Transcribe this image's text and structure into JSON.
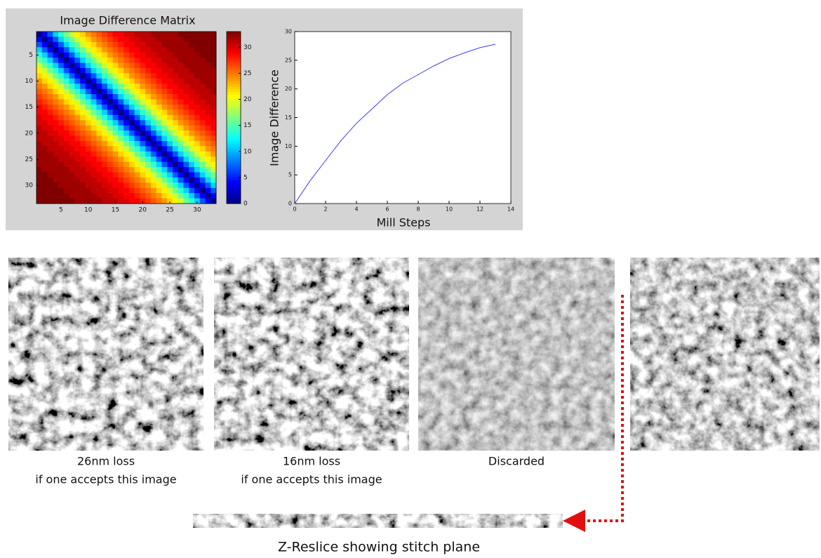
{
  "chart_data": [
    {
      "type": "heatmap",
      "title": "Image Difference Matrix",
      "xlim": [
        0.5,
        33.5
      ],
      "ylim": [
        33.5,
        0.5
      ],
      "xticks": [
        5,
        10,
        15,
        20,
        25,
        30
      ],
      "yticks": [
        5,
        10,
        15,
        20,
        25,
        30
      ],
      "clim": [
        0,
        33
      ],
      "cticks": [
        0,
        5,
        10,
        15,
        20,
        25,
        30
      ],
      "values": [
        [
          0,
          4,
          7,
          11,
          14,
          16,
          19,
          21,
          22,
          24,
          25,
          26,
          27,
          28,
          29,
          29,
          30,
          30,
          31,
          31,
          31,
          32,
          32,
          32,
          32,
          32,
          33,
          33,
          33,
          33,
          33,
          33,
          33
        ],
        [
          4,
          0,
          4,
          7,
          11,
          14,
          16,
          19,
          21,
          22,
          24,
          25,
          26,
          27,
          28,
          29,
          29,
          30,
          30,
          31,
          31,
          31,
          32,
          32,
          32,
          32,
          32,
          33,
          33,
          33,
          33,
          33,
          33
        ],
        [
          7,
          4,
          0,
          4,
          7,
          11,
          14,
          16,
          19,
          21,
          22,
          24,
          25,
          26,
          27,
          28,
          29,
          29,
          30,
          30,
          31,
          31,
          31,
          32,
          32,
          32,
          32,
          32,
          33,
          33,
          33,
          33,
          33
        ],
        [
          11,
          7,
          4,
          0,
          4,
          7,
          11,
          14,
          16,
          19,
          21,
          22,
          24,
          25,
          26,
          27,
          28,
          29,
          29,
          30,
          30,
          31,
          31,
          31,
          32,
          32,
          32,
          32,
          32,
          33,
          33,
          33,
          33
        ],
        [
          14,
          11,
          7,
          4,
          0,
          4,
          7,
          11,
          14,
          16,
          19,
          21,
          22,
          24,
          25,
          26,
          27,
          28,
          29,
          29,
          30,
          30,
          31,
          31,
          31,
          32,
          32,
          32,
          32,
          32,
          33,
          33,
          33
        ],
        [
          16,
          14,
          11,
          7,
          4,
          0,
          4,
          7,
          11,
          14,
          16,
          19,
          21,
          22,
          24,
          25,
          26,
          27,
          28,
          29,
          29,
          30,
          30,
          31,
          31,
          31,
          32,
          32,
          32,
          32,
          32,
          33,
          33
        ],
        [
          19,
          16,
          14,
          11,
          7,
          4,
          0,
          4,
          7,
          11,
          14,
          16,
          19,
          21,
          22,
          24,
          25,
          26,
          27,
          28,
          29,
          29,
          30,
          30,
          31,
          31,
          31,
          32,
          32,
          32,
          32,
          32,
          33
        ],
        [
          21,
          19,
          16,
          14,
          11,
          7,
          4,
          0,
          4,
          7,
          11,
          14,
          16,
          19,
          21,
          22,
          24,
          25,
          26,
          27,
          28,
          29,
          29,
          30,
          30,
          31,
          31,
          31,
          32,
          32,
          32,
          32,
          32
        ],
        [
          22,
          21,
          19,
          16,
          14,
          11,
          7,
          4,
          0,
          4,
          7,
          11,
          14,
          16,
          19,
          21,
          22,
          24,
          25,
          26,
          27,
          28,
          29,
          29,
          30,
          30,
          31,
          31,
          31,
          32,
          32,
          32,
          32
        ],
        [
          24,
          22,
          21,
          19,
          16,
          14,
          11,
          7,
          4,
          0,
          4,
          7,
          11,
          14,
          16,
          19,
          21,
          22,
          24,
          25,
          26,
          27,
          28,
          29,
          29,
          30,
          30,
          31,
          31,
          31,
          32,
          32,
          32
        ],
        [
          25,
          24,
          22,
          21,
          19,
          16,
          14,
          11,
          7,
          4,
          0,
          4,
          7,
          11,
          14,
          16,
          19,
          21,
          22,
          24,
          25,
          26,
          27,
          28,
          29,
          29,
          30,
          30,
          31,
          31,
          31,
          32,
          32
        ],
        [
          26,
          25,
          24,
          22,
          21,
          19,
          16,
          14,
          11,
          7,
          4,
          0,
          4,
          7,
          11,
          14,
          16,
          19,
          21,
          22,
          24,
          25,
          26,
          27,
          28,
          29,
          29,
          30,
          30,
          31,
          31,
          31,
          32
        ],
        [
          27,
          26,
          25,
          24,
          22,
          21,
          19,
          16,
          14,
          11,
          7,
          4,
          0,
          4,
          7,
          11,
          14,
          16,
          19,
          21,
          22,
          24,
          25,
          26,
          27,
          28,
          29,
          29,
          30,
          30,
          31,
          31,
          31
        ],
        [
          28,
          27,
          26,
          25,
          24,
          22,
          21,
          19,
          16,
          14,
          11,
          7,
          4,
          0,
          4,
          7,
          11,
          14,
          16,
          19,
          21,
          22,
          24,
          25,
          26,
          27,
          28,
          29,
          29,
          30,
          30,
          31,
          31
        ],
        [
          29,
          28,
          27,
          26,
          25,
          24,
          22,
          21,
          19,
          16,
          14,
          11,
          7,
          4,
          0,
          4,
          7,
          11,
          14,
          16,
          19,
          21,
          22,
          24,
          25,
          26,
          27,
          28,
          29,
          29,
          30,
          30,
          31
        ],
        [
          29,
          29,
          28,
          27,
          26,
          25,
          24,
          22,
          21,
          19,
          16,
          14,
          11,
          7,
          4,
          0,
          4,
          7,
          11,
          14,
          16,
          19,
          21,
          22,
          24,
          25,
          26,
          27,
          28,
          29,
          29,
          30,
          30
        ],
        [
          30,
          29,
          29,
          28,
          27,
          26,
          25,
          24,
          22,
          21,
          19,
          16,
          14,
          11,
          7,
          4,
          0,
          4,
          7,
          11,
          14,
          16,
          19,
          21,
          22,
          24,
          25,
          26,
          27,
          28,
          29,
          29,
          30
        ],
        [
          30,
          30,
          29,
          29,
          28,
          27,
          26,
          25,
          24,
          22,
          21,
          19,
          16,
          14,
          11,
          7,
          4,
          0,
          4,
          7,
          11,
          14,
          16,
          19,
          21,
          22,
          24,
          25,
          26,
          27,
          28,
          29,
          29
        ],
        [
          31,
          30,
          30,
          29,
          29,
          28,
          27,
          26,
          25,
          24,
          22,
          21,
          19,
          16,
          14,
          11,
          7,
          4,
          0,
          4,
          7,
          11,
          14,
          16,
          19,
          21,
          22,
          24,
          25,
          26,
          27,
          28,
          29
        ],
        [
          31,
          31,
          30,
          30,
          29,
          29,
          28,
          27,
          26,
          25,
          24,
          22,
          21,
          19,
          16,
          14,
          11,
          7,
          4,
          0,
          4,
          7,
          11,
          14,
          16,
          19,
          21,
          22,
          24,
          25,
          26,
          27,
          28
        ],
        [
          31,
          31,
          31,
          30,
          30,
          29,
          29,
          28,
          27,
          26,
          25,
          24,
          22,
          21,
          19,
          16,
          14,
          11,
          7,
          4,
          0,
          4,
          7,
          11,
          14,
          16,
          19,
          21,
          22,
          24,
          25,
          26,
          27
        ],
        [
          32,
          31,
          31,
          31,
          30,
          30,
          29,
          29,
          28,
          27,
          26,
          25,
          24,
          22,
          21,
          19,
          16,
          14,
          11,
          7,
          4,
          0,
          4,
          7,
          11,
          14,
          16,
          19,
          21,
          22,
          24,
          25,
          26
        ],
        [
          32,
          32,
          31,
          31,
          31,
          30,
          30,
          29,
          29,
          28,
          27,
          26,
          25,
          24,
          22,
          21,
          19,
          16,
          14,
          11,
          7,
          4,
          0,
          4,
          7,
          11,
          14,
          16,
          19,
          21,
          22,
          24,
          25
        ],
        [
          32,
          32,
          32,
          31,
          31,
          31,
          30,
          30,
          29,
          29,
          28,
          27,
          26,
          25,
          24,
          22,
          21,
          19,
          16,
          14,
          11,
          7,
          4,
          0,
          4,
          7,
          11,
          14,
          16,
          19,
          21,
          22,
          24
        ],
        [
          32,
          32,
          32,
          32,
          31,
          31,
          31,
          30,
          30,
          29,
          29,
          28,
          27,
          26,
          25,
          24,
          22,
          21,
          19,
          16,
          14,
          11,
          7,
          4,
          0,
          4,
          7,
          11,
          14,
          16,
          19,
          21,
          22
        ],
        [
          32,
          32,
          32,
          32,
          32,
          31,
          31,
          31,
          30,
          30,
          29,
          29,
          28,
          27,
          26,
          25,
          24,
          22,
          21,
          19,
          16,
          14,
          11,
          7,
          4,
          0,
          4,
          7,
          11,
          14,
          16,
          19,
          21
        ],
        [
          33,
          32,
          32,
          32,
          32,
          32,
          31,
          31,
          31,
          30,
          30,
          29,
          29,
          28,
          27,
          26,
          25,
          24,
          22,
          21,
          19,
          16,
          14,
          11,
          7,
          4,
          0,
          4,
          7,
          11,
          14,
          16,
          19
        ],
        [
          33,
          33,
          32,
          32,
          32,
          32,
          32,
          31,
          31,
          31,
          30,
          30,
          29,
          29,
          28,
          27,
          26,
          25,
          24,
          22,
          21,
          19,
          16,
          14,
          11,
          7,
          4,
          0,
          4,
          7,
          11,
          14,
          16
        ],
        [
          33,
          33,
          33,
          32,
          32,
          32,
          32,
          32,
          31,
          31,
          31,
          30,
          30,
          29,
          29,
          28,
          27,
          26,
          25,
          24,
          22,
          21,
          19,
          16,
          14,
          11,
          7,
          4,
          0,
          4,
          7,
          11,
          14
        ],
        [
          33,
          33,
          33,
          33,
          32,
          32,
          32,
          32,
          32,
          31,
          31,
          31,
          30,
          30,
          29,
          29,
          28,
          27,
          26,
          25,
          24,
          22,
          21,
          19,
          16,
          14,
          11,
          7,
          4,
          0,
          4,
          7,
          11
        ],
        [
          33,
          33,
          33,
          33,
          33,
          32,
          32,
          32,
          32,
          32,
          31,
          31,
          31,
          30,
          30,
          29,
          29,
          28,
          27,
          26,
          25,
          24,
          22,
          21,
          19,
          16,
          14,
          11,
          7,
          4,
          0,
          4,
          7
        ],
        [
          33,
          33,
          33,
          33,
          33,
          33,
          32,
          32,
          32,
          32,
          32,
          31,
          31,
          31,
          30,
          30,
          29,
          29,
          28,
          27,
          26,
          25,
          24,
          22,
          21,
          19,
          16,
          14,
          11,
          7,
          4,
          0,
          4
        ],
        [
          33,
          33,
          33,
          33,
          33,
          33,
          33,
          32,
          32,
          32,
          32,
          32,
          31,
          31,
          31,
          30,
          30,
          29,
          29,
          28,
          27,
          26,
          25,
          24,
          22,
          21,
          19,
          16,
          14,
          11,
          7,
          4,
          0
        ]
      ]
    },
    {
      "type": "line",
      "x_label": "Mill Steps",
      "y_label": "Image Difference",
      "x": [
        0,
        1,
        2,
        3,
        4,
        5,
        6,
        7,
        8,
        9,
        10,
        11,
        12,
        13
      ],
      "values": [
        0,
        4,
        7.5,
        11,
        14,
        16.5,
        19,
        21,
        22.5,
        24,
        25.3,
        26.3,
        27.2,
        27.8
      ],
      "color": "#3b3bff",
      "xlim": [
        0,
        14
      ],
      "ylim": [
        0,
        30
      ],
      "xticks": [
        0,
        2,
        4,
        6,
        8,
        10,
        12,
        14
      ],
      "yticks": [
        0,
        5,
        10,
        15,
        20,
        25,
        30
      ]
    }
  ],
  "captions": [
    [
      "26nm loss",
      "if one accepts this image"
    ],
    [
      "16nm loss",
      "if one accepts this image"
    ],
    [
      "Discarded"
    ]
  ],
  "reslice_caption": "Z-Reslice showing stitch plane"
}
